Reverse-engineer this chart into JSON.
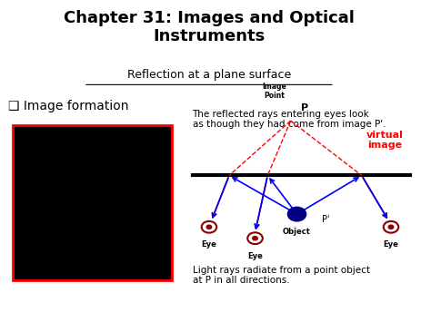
{
  "title": "Chapter 31: Images and Optical\nInstruments",
  "subtitle": "Reflection at a plane surface",
  "bullet": "❑ Image formation",
  "desc1": "The reflected rays entering eyes look\nas though they had come from image P'.",
  "desc2": "Light rays radiate from a point object\nat P in all directions.",
  "virtual_image": "virtual\nimage",
  "bg_color": "#ffffff"
}
